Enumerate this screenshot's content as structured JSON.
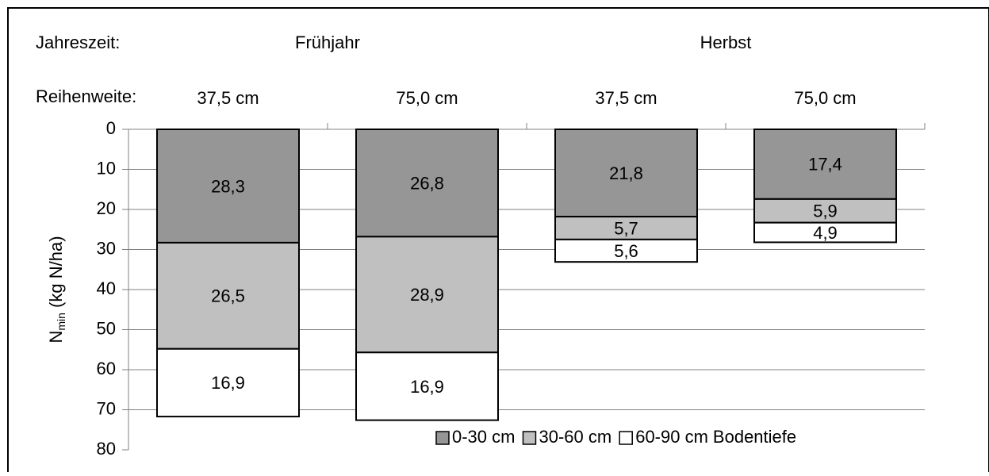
{
  "chart_data": {
    "type": "stacked-bar",
    "row_labels": [
      "Jahreszeit:",
      "Reihenweite:"
    ],
    "groups": [
      {
        "label": "Frühjahr",
        "span": 2
      },
      {
        "label": "Herbst",
        "span": 2
      }
    ],
    "categories": [
      "37,5 cm",
      "75,0 cm",
      "37,5 cm",
      "75,0 cm"
    ],
    "ylabel": {
      "base": "N",
      "sub": "min",
      "rest": " (kg N/ha)"
    },
    "ylim": [
      0,
      80
    ],
    "yticks": [
      0,
      10,
      20,
      30,
      40,
      50,
      60,
      70,
      80
    ],
    "inverted": true,
    "grid": true,
    "legend_suffix": "Bodentiefe",
    "series": [
      {
        "name": "0-30 cm",
        "color": "#969696",
        "values": [
          28.3,
          26.8,
          21.8,
          17.4
        ],
        "value_labels": [
          "28,3",
          "26,8",
          "21,8",
          "17,4"
        ]
      },
      {
        "name": "30-60 cm",
        "color": "#c0c0c0",
        "values": [
          26.5,
          28.9,
          5.7,
          5.9
        ],
        "value_labels": [
          "26,5",
          "28,9",
          "5,7",
          "5,9"
        ]
      },
      {
        "name": "60-90 cm",
        "color": "#ffffff",
        "values": [
          16.9,
          16.9,
          5.6,
          4.9
        ],
        "value_labels": [
          "16,9",
          "16,9",
          "5,6",
          "4,9"
        ]
      }
    ]
  }
}
